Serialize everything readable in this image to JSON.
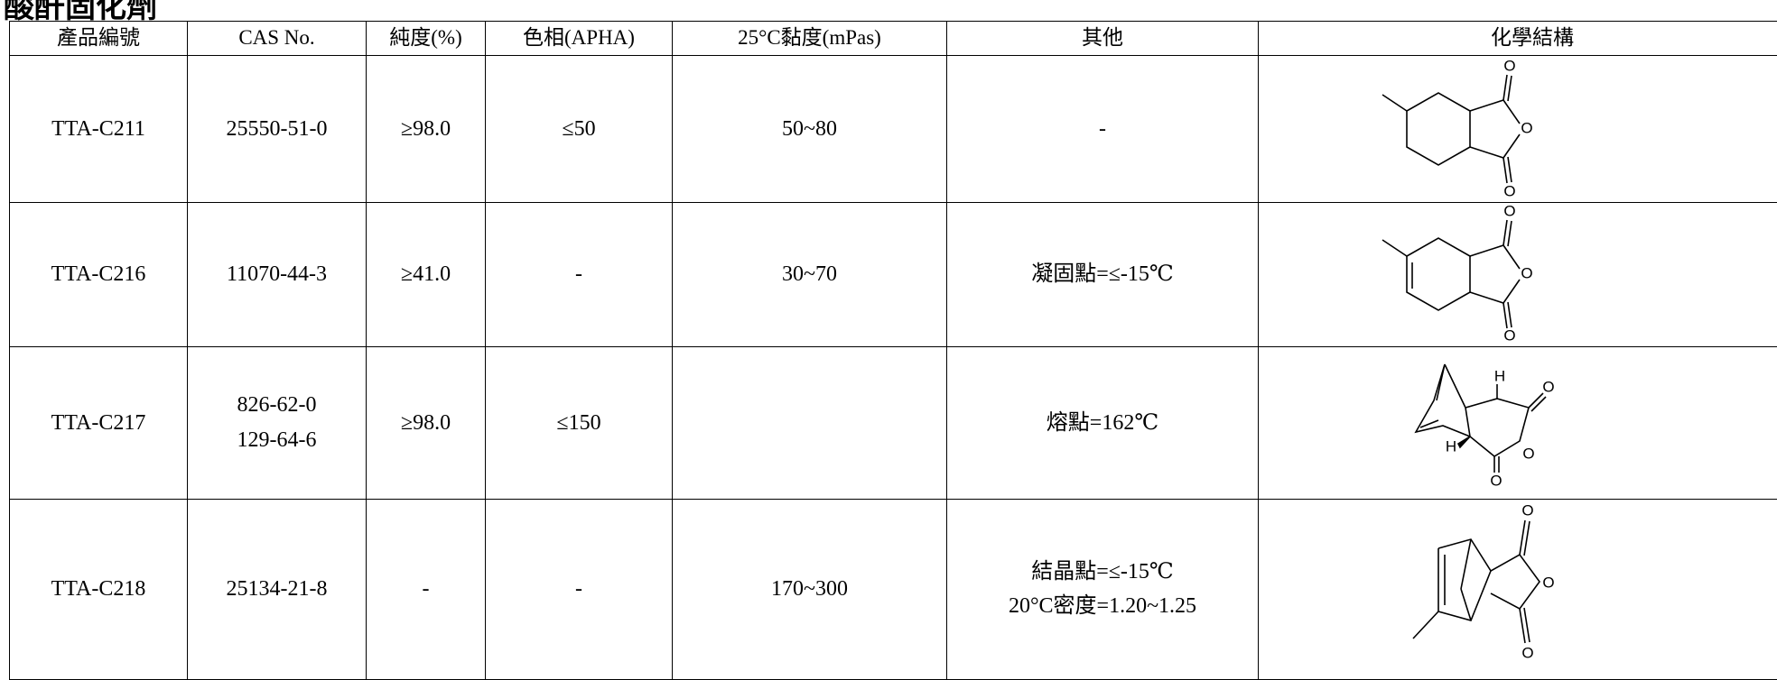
{
  "header": {
    "title": "酸酐固化劑"
  },
  "table": {
    "columns": [
      "產品編號",
      "CAS No.",
      "純度(%)",
      "色相(APHA)",
      "25°C黏度(mPas)",
      "其他",
      "化學結構"
    ],
    "rows": [
      {
        "cells": [
          [
            "TTA-C211"
          ],
          [
            "25550-51-0"
          ],
          [
            "≥98.0"
          ],
          [
            "≤50"
          ],
          [
            "50~80"
          ],
          [
            "-"
          ]
        ],
        "structure_labels": [
          "O",
          "O",
          "O"
        ]
      },
      {
        "cells": [
          [
            "TTA-C216"
          ],
          [
            "11070-44-3"
          ],
          [
            "≥41.0"
          ],
          [
            "-"
          ],
          [
            "30~70"
          ],
          [
            "凝固點=≤-15℃"
          ]
        ],
        "structure_labels": [
          "O",
          "O",
          "O"
        ]
      },
      {
        "cells": [
          [
            "TTA-C217"
          ],
          [
            "826-62-0",
            "129-64-6"
          ],
          [
            "≥98.0"
          ],
          [
            "≤150"
          ],
          [],
          [
            "熔點=162℃"
          ]
        ],
        "structure_labels": [
          "H",
          "O",
          "O",
          "H",
          "O"
        ]
      },
      {
        "cells": [
          [
            "TTA-C218"
          ],
          [
            "25134-21-8"
          ],
          [
            "-"
          ],
          [
            "-"
          ],
          [
            "170~300"
          ],
          [
            "結晶點=≤-15℃",
            "20°C密度=1.20~1.25"
          ]
        ],
        "structure_labels": [
          "O",
          "O",
          "O"
        ]
      }
    ]
  }
}
